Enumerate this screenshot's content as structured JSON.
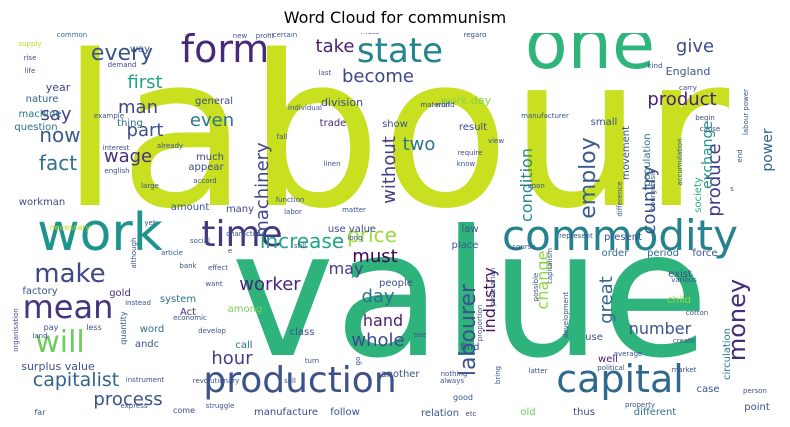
{
  "chart_data": {
    "type": "wordcloud",
    "title": "Word Cloud for communism",
    "words": [
      {
        "text": "labour",
        "weight": 100,
        "color": "#c8e020"
      },
      {
        "text": "value",
        "weight": 92,
        "color": "#2eb37c"
      },
      {
        "text": "one",
        "weight": 45,
        "color": "#2fb47c"
      },
      {
        "text": "work",
        "weight": 36,
        "color": "#1f948c"
      },
      {
        "text": "commodity",
        "weight": 30,
        "color": "#26828e"
      },
      {
        "text": "production",
        "weight": 28,
        "color": "#3b528b"
      },
      {
        "text": "capital",
        "weight": 27,
        "color": "#31688e"
      },
      {
        "text": "form",
        "weight": 26,
        "color": "#482878"
      },
      {
        "text": "time",
        "weight": 24,
        "color": "#44397d"
      },
      {
        "text": "state",
        "weight": 22,
        "color": "#25858e"
      },
      {
        "text": "mean",
        "weight": 20,
        "color": "#46337e"
      },
      {
        "text": "will",
        "weight": 19,
        "color": "#6ccd5a"
      },
      {
        "text": "make",
        "weight": 16,
        "color": "#3f4788"
      },
      {
        "text": "money",
        "weight": 15,
        "color": "#472c7a"
      },
      {
        "text": "labourer",
        "weight": 15,
        "color": "#3b528b"
      },
      {
        "text": "every",
        "weight": 14,
        "color": "#3a548c"
      },
      {
        "text": "increase",
        "weight": 13,
        "color": "#21a685"
      },
      {
        "text": "employ",
        "weight": 12,
        "color": "#375b8d"
      },
      {
        "text": "fact",
        "weight": 12,
        "color": "#2c728e"
      },
      {
        "text": "now",
        "weight": 11,
        "color": "#38598c"
      },
      {
        "text": "price",
        "weight": 11,
        "color": "#9bd93c"
      },
      {
        "text": "capitalist",
        "weight": 11,
        "color": "#33638d"
      },
      {
        "text": "take",
        "weight": 10,
        "color": "#481f70"
      },
      {
        "text": "become",
        "weight": 10,
        "color": "#3f4788"
      },
      {
        "text": "give",
        "weight": 10,
        "color": "#3e4a89"
      },
      {
        "text": "product",
        "weight": 10,
        "color": "#482475"
      },
      {
        "text": "process",
        "weight": 10,
        "color": "#3b528b"
      },
      {
        "text": "first",
        "weight": 10,
        "color": "#20a386"
      },
      {
        "text": "man",
        "weight": 10,
        "color": "#404588"
      },
      {
        "text": "part",
        "weight": 10,
        "color": "#3b528b"
      },
      {
        "text": "even",
        "weight": 10,
        "color": "#2a768e"
      },
      {
        "text": "say",
        "weight": 10,
        "color": "#404387"
      },
      {
        "text": "wage",
        "weight": 10,
        "color": "#46307e"
      },
      {
        "text": "machinery",
        "weight": 10,
        "color": "#3f4788"
      },
      {
        "text": "must",
        "weight": 10,
        "color": "#440154"
      },
      {
        "text": "two",
        "weight": 10,
        "color": "#2c718e"
      },
      {
        "text": "without",
        "weight": 10,
        "color": "#433e85"
      },
      {
        "text": "condition",
        "weight": 10,
        "color": "#24878e"
      },
      {
        "text": "country",
        "weight": 10,
        "color": "#3b528b"
      },
      {
        "text": "produce",
        "weight": 10,
        "color": "#433d84"
      },
      {
        "text": "exchange",
        "weight": 9,
        "color": "#21918c"
      },
      {
        "text": "power",
        "weight": 9,
        "color": "#33638d"
      },
      {
        "text": "industry",
        "weight": 9,
        "color": "#471365"
      },
      {
        "text": "change",
        "weight": 9,
        "color": "#8bd646"
      },
      {
        "text": "great",
        "weight": 9,
        "color": "#31688e"
      },
      {
        "text": "number",
        "weight": 9,
        "color": "#3b528b"
      },
      {
        "text": "hour",
        "weight": 9,
        "color": "#424086"
      },
      {
        "text": "day",
        "weight": 9,
        "color": "#2c728e"
      },
      {
        "text": "hand",
        "weight": 9,
        "color": "#481f70"
      },
      {
        "text": "whole",
        "weight": 9,
        "color": "#3e4a89"
      },
      {
        "text": "may",
        "weight": 9,
        "color": "#433e85"
      },
      {
        "text": "worker",
        "weight": 9,
        "color": "#482878"
      },
      {
        "text": "surplus value",
        "weight": 6,
        "color": "#3b528b"
      },
      {
        "text": "division",
        "weight": 6,
        "color": "#3e4a89"
      },
      {
        "text": "work day",
        "weight": 6,
        "color": "#84d44b"
      },
      {
        "text": "England",
        "weight": 6,
        "color": "#375b8d"
      },
      {
        "text": "year",
        "weight": 5,
        "color": "#3f4788"
      },
      {
        "text": "nature",
        "weight": 5,
        "color": "#33638d"
      },
      {
        "text": "machine",
        "weight": 5,
        "color": "#2a788e"
      },
      {
        "text": "question",
        "weight": 5,
        "color": "#2c718e"
      },
      {
        "text": "workman",
        "weight": 5,
        "color": "#3e4989"
      },
      {
        "text": "thing",
        "weight": 5,
        "color": "#2d708e"
      },
      {
        "text": "way",
        "weight": 5,
        "color": "#3b528b"
      },
      {
        "text": "general",
        "weight": 5,
        "color": "#3e4989"
      },
      {
        "text": "trade",
        "weight": 5,
        "color": "#482475"
      },
      {
        "text": "show",
        "weight": 5,
        "color": "#3b528b"
      },
      {
        "text": "result",
        "weight": 5,
        "color": "#3f4788"
      },
      {
        "text": "small",
        "weight": 5,
        "color": "#3b528b"
      },
      {
        "text": "movement",
        "weight": 5,
        "color": "#3b528b"
      },
      {
        "text": "population",
        "weight": 5,
        "color": "#2d708e"
      },
      {
        "text": "society",
        "weight": 5,
        "color": "#28ae80"
      },
      {
        "text": "much",
        "weight": 5,
        "color": "#3f4788"
      },
      {
        "text": "appear",
        "weight": 5,
        "color": "#3e4a89"
      },
      {
        "text": "amount",
        "weight": 5,
        "color": "#3b528b"
      },
      {
        "text": "many",
        "weight": 5,
        "color": "#404588"
      },
      {
        "text": "use value",
        "weight": 5,
        "color": "#3e4989"
      },
      {
        "text": "law",
        "weight": 5,
        "color": "#3b528b"
      },
      {
        "text": "place",
        "weight": 5,
        "color": "#38598c"
      },
      {
        "text": "present",
        "weight": 5,
        "color": "#3b528b"
      },
      {
        "text": "order",
        "weight": 5,
        "color": "#31688e"
      },
      {
        "text": "period",
        "weight": 5,
        "color": "#31688e"
      },
      {
        "text": "force",
        "weight": 5,
        "color": "#3b528b"
      },
      {
        "text": "exist",
        "weight": 5,
        "color": "#3e4a89"
      },
      {
        "text": "child",
        "weight": 5,
        "color": "#95d840"
      },
      {
        "text": "people",
        "weight": 5,
        "color": "#3b528b"
      },
      {
        "text": "factory",
        "weight": 5,
        "color": "#3b528b"
      },
      {
        "text": "gold",
        "weight": 5,
        "color": "#46307e"
      },
      {
        "text": "system",
        "weight": 5,
        "color": "#2d708e"
      },
      {
        "text": "Act",
        "weight": 5,
        "color": "#472f7d"
      },
      {
        "text": "word",
        "weight": 5,
        "color": "#2c728e"
      },
      {
        "text": "andc",
        "weight": 5,
        "color": "#3b528b"
      },
      {
        "text": "call",
        "weight": 5,
        "color": "#2c728e"
      },
      {
        "text": "among",
        "weight": 5,
        "color": "#7ad151"
      },
      {
        "text": "class",
        "weight": 5,
        "color": "#3b528b"
      },
      {
        "text": "find",
        "weight": 5,
        "color": "#3e4a89"
      },
      {
        "text": "use",
        "weight": 5,
        "color": "#3b528b"
      },
      {
        "text": "well",
        "weight": 5,
        "color": "#482576"
      },
      {
        "text": "another",
        "weight": 5,
        "color": "#3b528b"
      },
      {
        "text": "manufacture",
        "weight": 5,
        "color": "#3e4a89"
      },
      {
        "text": "follow",
        "weight": 5,
        "color": "#3b528b"
      },
      {
        "text": "relation",
        "weight": 5,
        "color": "#3b528b"
      },
      {
        "text": "old",
        "weight": 5,
        "color": "#6ccd5a"
      },
      {
        "text": "thus",
        "weight": 5,
        "color": "#3e4a89"
      },
      {
        "text": "different",
        "weight": 5,
        "color": "#2c728e"
      },
      {
        "text": "point",
        "weight": 5,
        "color": "#3b528b"
      },
      {
        "text": "case",
        "weight": 5,
        "color": "#3b528b"
      },
      {
        "text": "circulation",
        "weight": 5,
        "color": "#2a788e"
      },
      {
        "text": "less",
        "weight": 4,
        "color": "#3b528b"
      },
      {
        "text": "pay",
        "weight": 4,
        "color": "#3b528b"
      },
      {
        "text": "far",
        "weight": 4,
        "color": "#3b528b"
      },
      {
        "text": "come",
        "weight": 4,
        "color": "#3e4989"
      },
      {
        "text": "good",
        "weight": 4,
        "color": "#3b528b"
      },
      {
        "text": "quantity",
        "weight": 4,
        "color": "#3b528b"
      },
      {
        "text": "necessary",
        "weight": 4,
        "color": "#bddf26"
      },
      {
        "text": "demand",
        "weight": 3,
        "color": "#3e4a89"
      },
      {
        "text": "supply",
        "weight": 3,
        "color": "#c2df23"
      },
      {
        "text": "common",
        "weight": 3,
        "color": "#2c728e"
      },
      {
        "text": "rise",
        "weight": 3,
        "color": "#3b528b"
      },
      {
        "text": "life",
        "weight": 3,
        "color": "#3b528b"
      },
      {
        "text": "interest",
        "weight": 3,
        "color": "#3b528b"
      },
      {
        "text": "english",
        "weight": 3,
        "color": "#3b528b"
      },
      {
        "text": "example",
        "weight": 3,
        "color": "#3b528b"
      },
      {
        "text": "already",
        "weight": 3,
        "color": "#3b528b"
      },
      {
        "text": "large",
        "weight": 3,
        "color": "#3b528b"
      },
      {
        "text": "profit",
        "weight": 3,
        "color": "#3b528b"
      },
      {
        "text": "new",
        "weight": 3,
        "color": "#3b528b"
      },
      {
        "text": "certain",
        "weight": 3,
        "color": "#3b528b"
      },
      {
        "text": "mass",
        "weight": 3,
        "color": "#3b528b"
      },
      {
        "text": "regard",
        "weight": 3,
        "color": "#3b528b"
      },
      {
        "text": "last",
        "weight": 3,
        "color": "#3b528b"
      },
      {
        "text": "fall",
        "weight": 3,
        "color": "#3b528b"
      },
      {
        "text": "individual",
        "weight": 3,
        "color": "#3b528b"
      },
      {
        "text": "material",
        "weight": 3,
        "color": "#3b528b"
      },
      {
        "text": "world",
        "weight": 3,
        "color": "#3b528b"
      },
      {
        "text": "manufacturer",
        "weight": 3,
        "color": "#3b528b"
      },
      {
        "text": "view",
        "weight": 3,
        "color": "#3b528b"
      },
      {
        "text": "require",
        "weight": 3,
        "color": "#3b528b"
      },
      {
        "text": "know",
        "weight": 3,
        "color": "#3b528b"
      },
      {
        "text": "linen",
        "weight": 3,
        "color": "#3b528b"
      },
      {
        "text": "kind",
        "weight": 3,
        "color": "#3b528b"
      },
      {
        "text": "carry",
        "weight": 3,
        "color": "#3b528b"
      },
      {
        "text": "begin",
        "weight": 3,
        "color": "#3b528b"
      },
      {
        "text": "cause",
        "weight": 3,
        "color": "#3b528b"
      },
      {
        "text": "end",
        "weight": 3,
        "color": "#3b528b"
      },
      {
        "text": "difference",
        "weight": 3,
        "color": "#3b528b"
      },
      {
        "text": "accumulation",
        "weight": 3,
        "color": "#3b528b"
      },
      {
        "text": "bourgeoisie",
        "weight": 3,
        "color": "#3b528b"
      },
      {
        "text": "accord",
        "weight": 3,
        "color": "#3b528b"
      },
      {
        "text": "upon",
        "weight": 3,
        "color": "#3b528b"
      },
      {
        "text": "represent",
        "weight": 3,
        "color": "#3b528b"
      },
      {
        "text": "function",
        "weight": 3,
        "color": "#3b528b"
      },
      {
        "text": "labor",
        "weight": 3,
        "color": "#3b528b"
      },
      {
        "text": "matter",
        "weight": 3,
        "color": "#3b528b"
      },
      {
        "text": "character",
        "weight": 3,
        "color": "#3b528b"
      },
      {
        "text": "still",
        "weight": 3,
        "color": "#3b528b"
      },
      {
        "text": "long",
        "weight": 3,
        "color": "#3b528b"
      },
      {
        "text": "social",
        "weight": 3,
        "color": "#3b528b"
      },
      {
        "text": "e",
        "weight": 3,
        "color": "#3b528b"
      },
      {
        "text": "effect",
        "weight": 3,
        "color": "#3b528b"
      },
      {
        "text": "want",
        "weight": 3,
        "color": "#3b528b"
      },
      {
        "text": "article",
        "weight": 3,
        "color": "#3b528b"
      },
      {
        "text": "bank",
        "weight": 3,
        "color": "#3b528b"
      },
      {
        "text": "economic",
        "weight": 3,
        "color": "#3b528b"
      },
      {
        "text": "develop",
        "weight": 3,
        "color": "#3b528b"
      },
      {
        "text": "revolutionary",
        "weight": 3,
        "color": "#3b528b"
      },
      {
        "text": "turn",
        "weight": 3,
        "color": "#3b528b"
      },
      {
        "text": "sell",
        "weight": 3,
        "color": "#3b528b"
      },
      {
        "text": "go",
        "weight": 3,
        "color": "#3b528b"
      },
      {
        "text": "instead",
        "weight": 3,
        "color": "#3b528b"
      },
      {
        "text": "instrument",
        "weight": 3,
        "color": "#3b528b"
      },
      {
        "text": "organisation",
        "weight": 3,
        "color": "#3b528b"
      },
      {
        "text": "land",
        "weight": 3,
        "color": "#3b528b"
      },
      {
        "text": "although",
        "weight": 3,
        "color": "#3b528b"
      },
      {
        "text": "express",
        "weight": 3,
        "color": "#3b528b"
      },
      {
        "text": "struggle",
        "weight": 3,
        "color": "#3b528b"
      },
      {
        "text": "etc",
        "weight": 3,
        "color": "#3b528b"
      },
      {
        "text": "nothing",
        "weight": 3,
        "color": "#3b528b"
      },
      {
        "text": "always",
        "weight": 3,
        "color": "#3b528b"
      },
      {
        "text": "bring",
        "weight": 3,
        "color": "#3b528b"
      },
      {
        "text": "latter",
        "weight": 3,
        "color": "#3b528b"
      },
      {
        "text": "political",
        "weight": 3,
        "color": "#3b528b"
      },
      {
        "text": "market",
        "weight": 3,
        "color": "#3b528b"
      },
      {
        "text": "average",
        "weight": 3,
        "color": "#3b528b"
      },
      {
        "text": "create",
        "weight": 3,
        "color": "#3b528b"
      },
      {
        "text": "various",
        "weight": 3,
        "color": "#3b528b"
      },
      {
        "text": "cotton",
        "weight": 3,
        "color": "#3b528b"
      },
      {
        "text": "person",
        "weight": 3,
        "color": "#3b528b"
      },
      {
        "text": "property",
        "weight": 3,
        "color": "#3b528b"
      },
      {
        "text": "possible",
        "weight": 3,
        "color": "#3b528b"
      },
      {
        "text": "course",
        "weight": 3,
        "color": "#3b528b"
      },
      {
        "text": "proletarian",
        "weight": 3,
        "color": "#3b528b"
      },
      {
        "text": "capitalism",
        "weight": 3,
        "color": "#3b528b"
      },
      {
        "text": "proportion",
        "weight": 3,
        "color": "#3b528b"
      },
      {
        "text": "development",
        "weight": 3,
        "color": "#3b528b"
      },
      {
        "text": "yet",
        "weight": 3,
        "color": "#3b528b"
      },
      {
        "text": "see",
        "weight": 3,
        "color": "#3b528b"
      },
      {
        "text": "labour power",
        "weight": 3,
        "color": "#3b528b"
      },
      {
        "text": "s",
        "weight": 3,
        "color": "#3b528b"
      }
    ]
  }
}
